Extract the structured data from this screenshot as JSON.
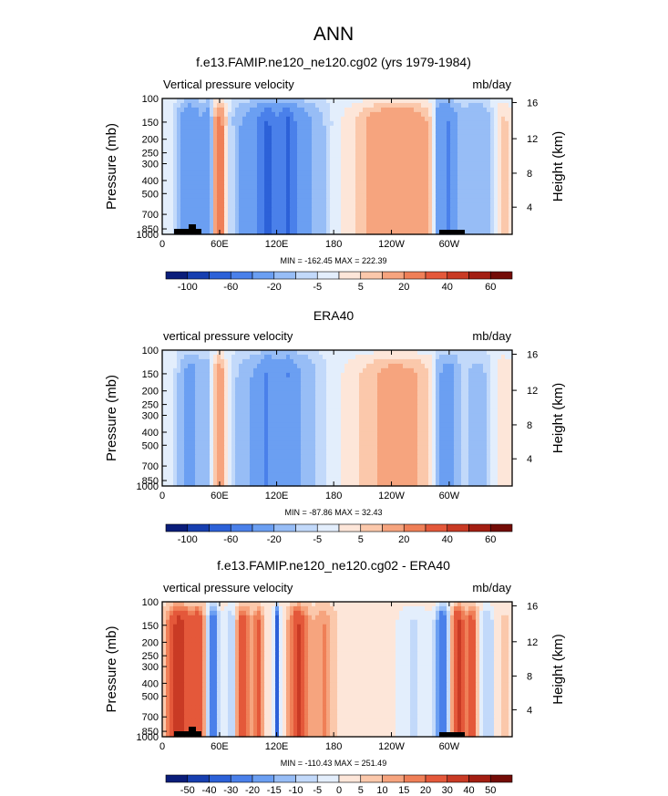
{
  "page_title": "ANN",
  "chart_data": [
    {
      "type": "heatmap",
      "title": "f.e13.FAMIP.ne120_ne120.cg02 (yrs 1979-1984)",
      "left_label": "Vertical pressure velocity",
      "right_label": "mb/day",
      "ylabel": "Pressure (mb)",
      "y2label": "Height (km)",
      "x_ticks": [
        "0",
        "60E",
        "120E",
        "180",
        "120W",
        "60W"
      ],
      "y_ticks": [
        "100",
        "150",
        "200",
        "250",
        "300",
        "400",
        "500",
        "700",
        "850",
        "1000"
      ],
      "y2_ticks": [
        "16",
        "12",
        "8",
        "4"
      ],
      "ylim": [
        1000,
        100
      ],
      "stats": "MIN = -162.45   MAX = 222.39",
      "colorbar_labels": [
        "-100",
        "-60",
        "-20",
        "-5",
        "5",
        "20",
        "40",
        "60"
      ],
      "colorbar_colors": [
        "#0a1d7a",
        "#173fb0",
        "#2c61d8",
        "#4a80ea",
        "#6b9ff2",
        "#97bdf6",
        "#c2d9fa",
        "#e3eefc",
        "#fde6d9",
        "#fbc8ab",
        "#f6a47e",
        "#ef7f57",
        "#e4583a",
        "#c93a24",
        "#a31e12",
        "#740c07"
      ]
    },
    {
      "type": "heatmap",
      "title": "ERA40",
      "left_label": "vertical pressure velocity",
      "right_label": "mb/day",
      "ylabel": "Pressure (mb)",
      "y2label": "Height (km)",
      "x_ticks": [
        "0",
        "60E",
        "120E",
        "180",
        "120W",
        "60W"
      ],
      "y_ticks": [
        "100",
        "150",
        "200",
        "250",
        "300",
        "400",
        "500",
        "700",
        "850",
        "1000"
      ],
      "y2_ticks": [
        "16",
        "12",
        "8",
        "4"
      ],
      "ylim": [
        1000,
        100
      ],
      "stats": "MIN = -87.86   MAX = 32.43",
      "colorbar_labels": [
        "-100",
        "-60",
        "-20",
        "-5",
        "5",
        "20",
        "40",
        "60"
      ],
      "colorbar_colors": [
        "#0a1d7a",
        "#173fb0",
        "#2c61d8",
        "#4a80ea",
        "#6b9ff2",
        "#97bdf6",
        "#c2d9fa",
        "#e3eefc",
        "#fde6d9",
        "#fbc8ab",
        "#f6a47e",
        "#ef7f57",
        "#e4583a",
        "#c93a24",
        "#a31e12",
        "#740c07"
      ]
    },
    {
      "type": "heatmap",
      "title": "f.e13.FAMIP.ne120_ne120.cg02 - ERA40",
      "left_label": "vertical pressure velocity",
      "right_label": "mb/day",
      "ylabel": "Pressure (mb)",
      "y2label": "Height (km)",
      "x_ticks": [
        "0",
        "60E",
        "120E",
        "180",
        "120W",
        "60W"
      ],
      "y_ticks": [
        "100",
        "150",
        "200",
        "250",
        "300",
        "400",
        "500",
        "700",
        "850",
        "1000"
      ],
      "y2_ticks": [
        "16",
        "12",
        "8",
        "4"
      ],
      "ylim": [
        1000,
        100
      ],
      "stats": "MIN = -110.43   MAX = 251.49",
      "colorbar_labels": [
        "-50",
        "-40",
        "-30",
        "-20",
        "-15",
        "-10",
        "-5",
        "0",
        "5",
        "10",
        "15",
        "20",
        "30",
        "40",
        "50"
      ],
      "colorbar_colors": [
        "#0a1d7a",
        "#173fb0",
        "#2c61d8",
        "#4a80ea",
        "#6b9ff2",
        "#97bdf6",
        "#c2d9fa",
        "#e3eefc",
        "#fde6d9",
        "#fbc8ab",
        "#f6a47e",
        "#ef7f57",
        "#e4583a",
        "#c93a24",
        "#a31e12",
        "#740c07"
      ]
    }
  ]
}
